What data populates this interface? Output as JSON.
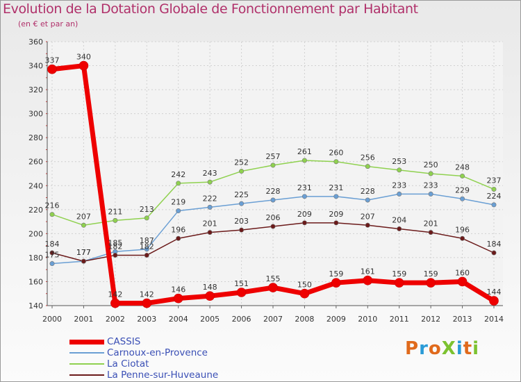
{
  "header": {
    "title": "Evolution de la Dotation Globale de Fonctionnement par Habitant",
    "subtitle": "(en € et par an)"
  },
  "logo": {
    "text": "ProXiti",
    "colors": [
      "#e06a1c",
      "#2a9bd7",
      "#e06a1c",
      "#7cc230",
      "#2a9bd7",
      "#e06a1c",
      "#7cc230"
    ]
  },
  "chart_data": {
    "type": "line",
    "title": "Evolution de la Dotation Globale de Fonctionnement par Habitant",
    "subtitle": "(en € et par an)",
    "xlabel": "",
    "ylabel": "",
    "ylim": [
      140,
      360
    ],
    "yticks": [
      140,
      160,
      180,
      200,
      220,
      240,
      260,
      280,
      300,
      320,
      340,
      360
    ],
    "grid": true,
    "legend_position": "bottom-left",
    "categories": [
      "2000",
      "2001",
      "2002",
      "2003",
      "2004",
      "2005",
      "2006",
      "2007",
      "2008",
      "2009",
      "2010",
      "2011",
      "2012",
      "2013",
      "2014"
    ],
    "series": [
      {
        "name": "CASSIS",
        "color": "#ee0000",
        "width": 7,
        "values": [
          337,
          340,
          142,
          142,
          146,
          148,
          151,
          155,
          150,
          159,
          161,
          159,
          159,
          160,
          144
        ],
        "labels": [
          "337",
          "340",
          "142",
          "142",
          "146",
          "148",
          "151",
          "155",
          "150",
          "159",
          "161",
          "159",
          "159",
          "160",
          "144"
        ]
      },
      {
        "name": "Carnoux-en-Provence",
        "color": "#6a9fd4",
        "width": 1.5,
        "values": [
          175,
          177,
          185,
          187,
          219,
          222,
          225,
          228,
          231,
          231,
          228,
          233,
          233,
          229,
          224
        ],
        "labels": [
          "175",
          "177",
          "185",
          "187",
          "219",
          "222",
          "225",
          "228",
          "231",
          "231",
          "228",
          "233",
          "233",
          "229",
          "224"
        ]
      },
      {
        "name": "La Ciotat",
        "color": "#8fd14f",
        "width": 1.5,
        "values": [
          216,
          207,
          211,
          213,
          242,
          243,
          252,
          257,
          261,
          260,
          256,
          253,
          250,
          248,
          237
        ],
        "labels": [
          "216",
          "207",
          "211",
          "213",
          "242",
          "243",
          "252",
          "257",
          "261",
          "260",
          "256",
          "253",
          "250",
          "248",
          "237"
        ]
      },
      {
        "name": "La Penne-sur-Huveaune",
        "color": "#6b1a1a",
        "width": 1.5,
        "values": [
          184,
          177,
          182,
          182,
          196,
          201,
          203,
          206,
          209,
          209,
          207,
          204,
          201,
          196,
          184
        ],
        "labels": [
          "184",
          "177",
          "182",
          "182",
          "196",
          "201",
          "203",
          "206",
          "209",
          "209",
          "207",
          "204",
          "201",
          "196",
          "184"
        ]
      }
    ]
  }
}
